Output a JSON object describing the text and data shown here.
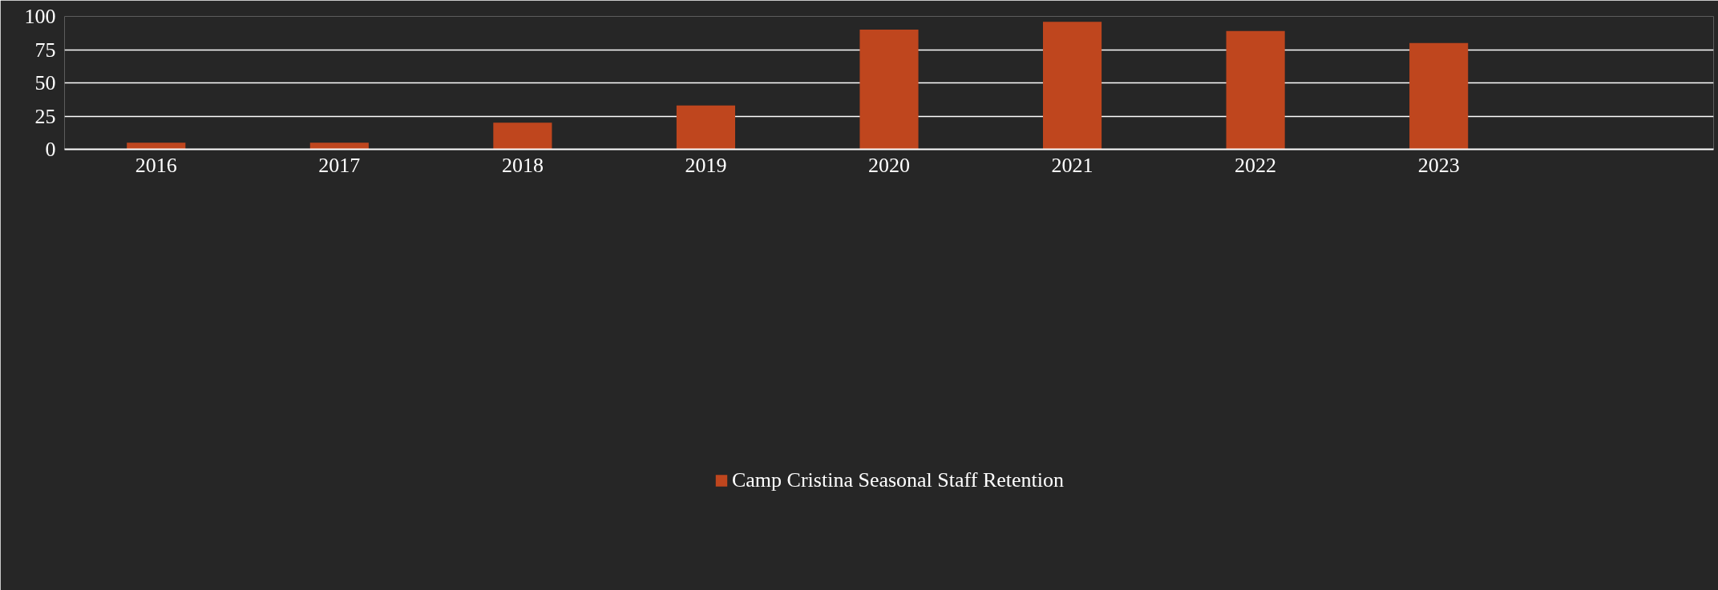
{
  "chart_data": {
    "type": "bar",
    "categories": [
      "2016",
      "2017",
      "2018",
      "2019",
      "2020",
      "2021",
      "2022",
      "2023",
      null
    ],
    "series": [
      {
        "name": "Camp Cristina Seasonal Staff Retention",
        "color": "#bf461e",
        "values": [
          5,
          5,
          20,
          33,
          90,
          96,
          89,
          80,
          null
        ]
      }
    ],
    "ylim": [
      0,
      100
    ],
    "yticks": [
      0,
      25,
      50,
      75,
      100
    ],
    "grid": "y",
    "legend": "bottom"
  }
}
